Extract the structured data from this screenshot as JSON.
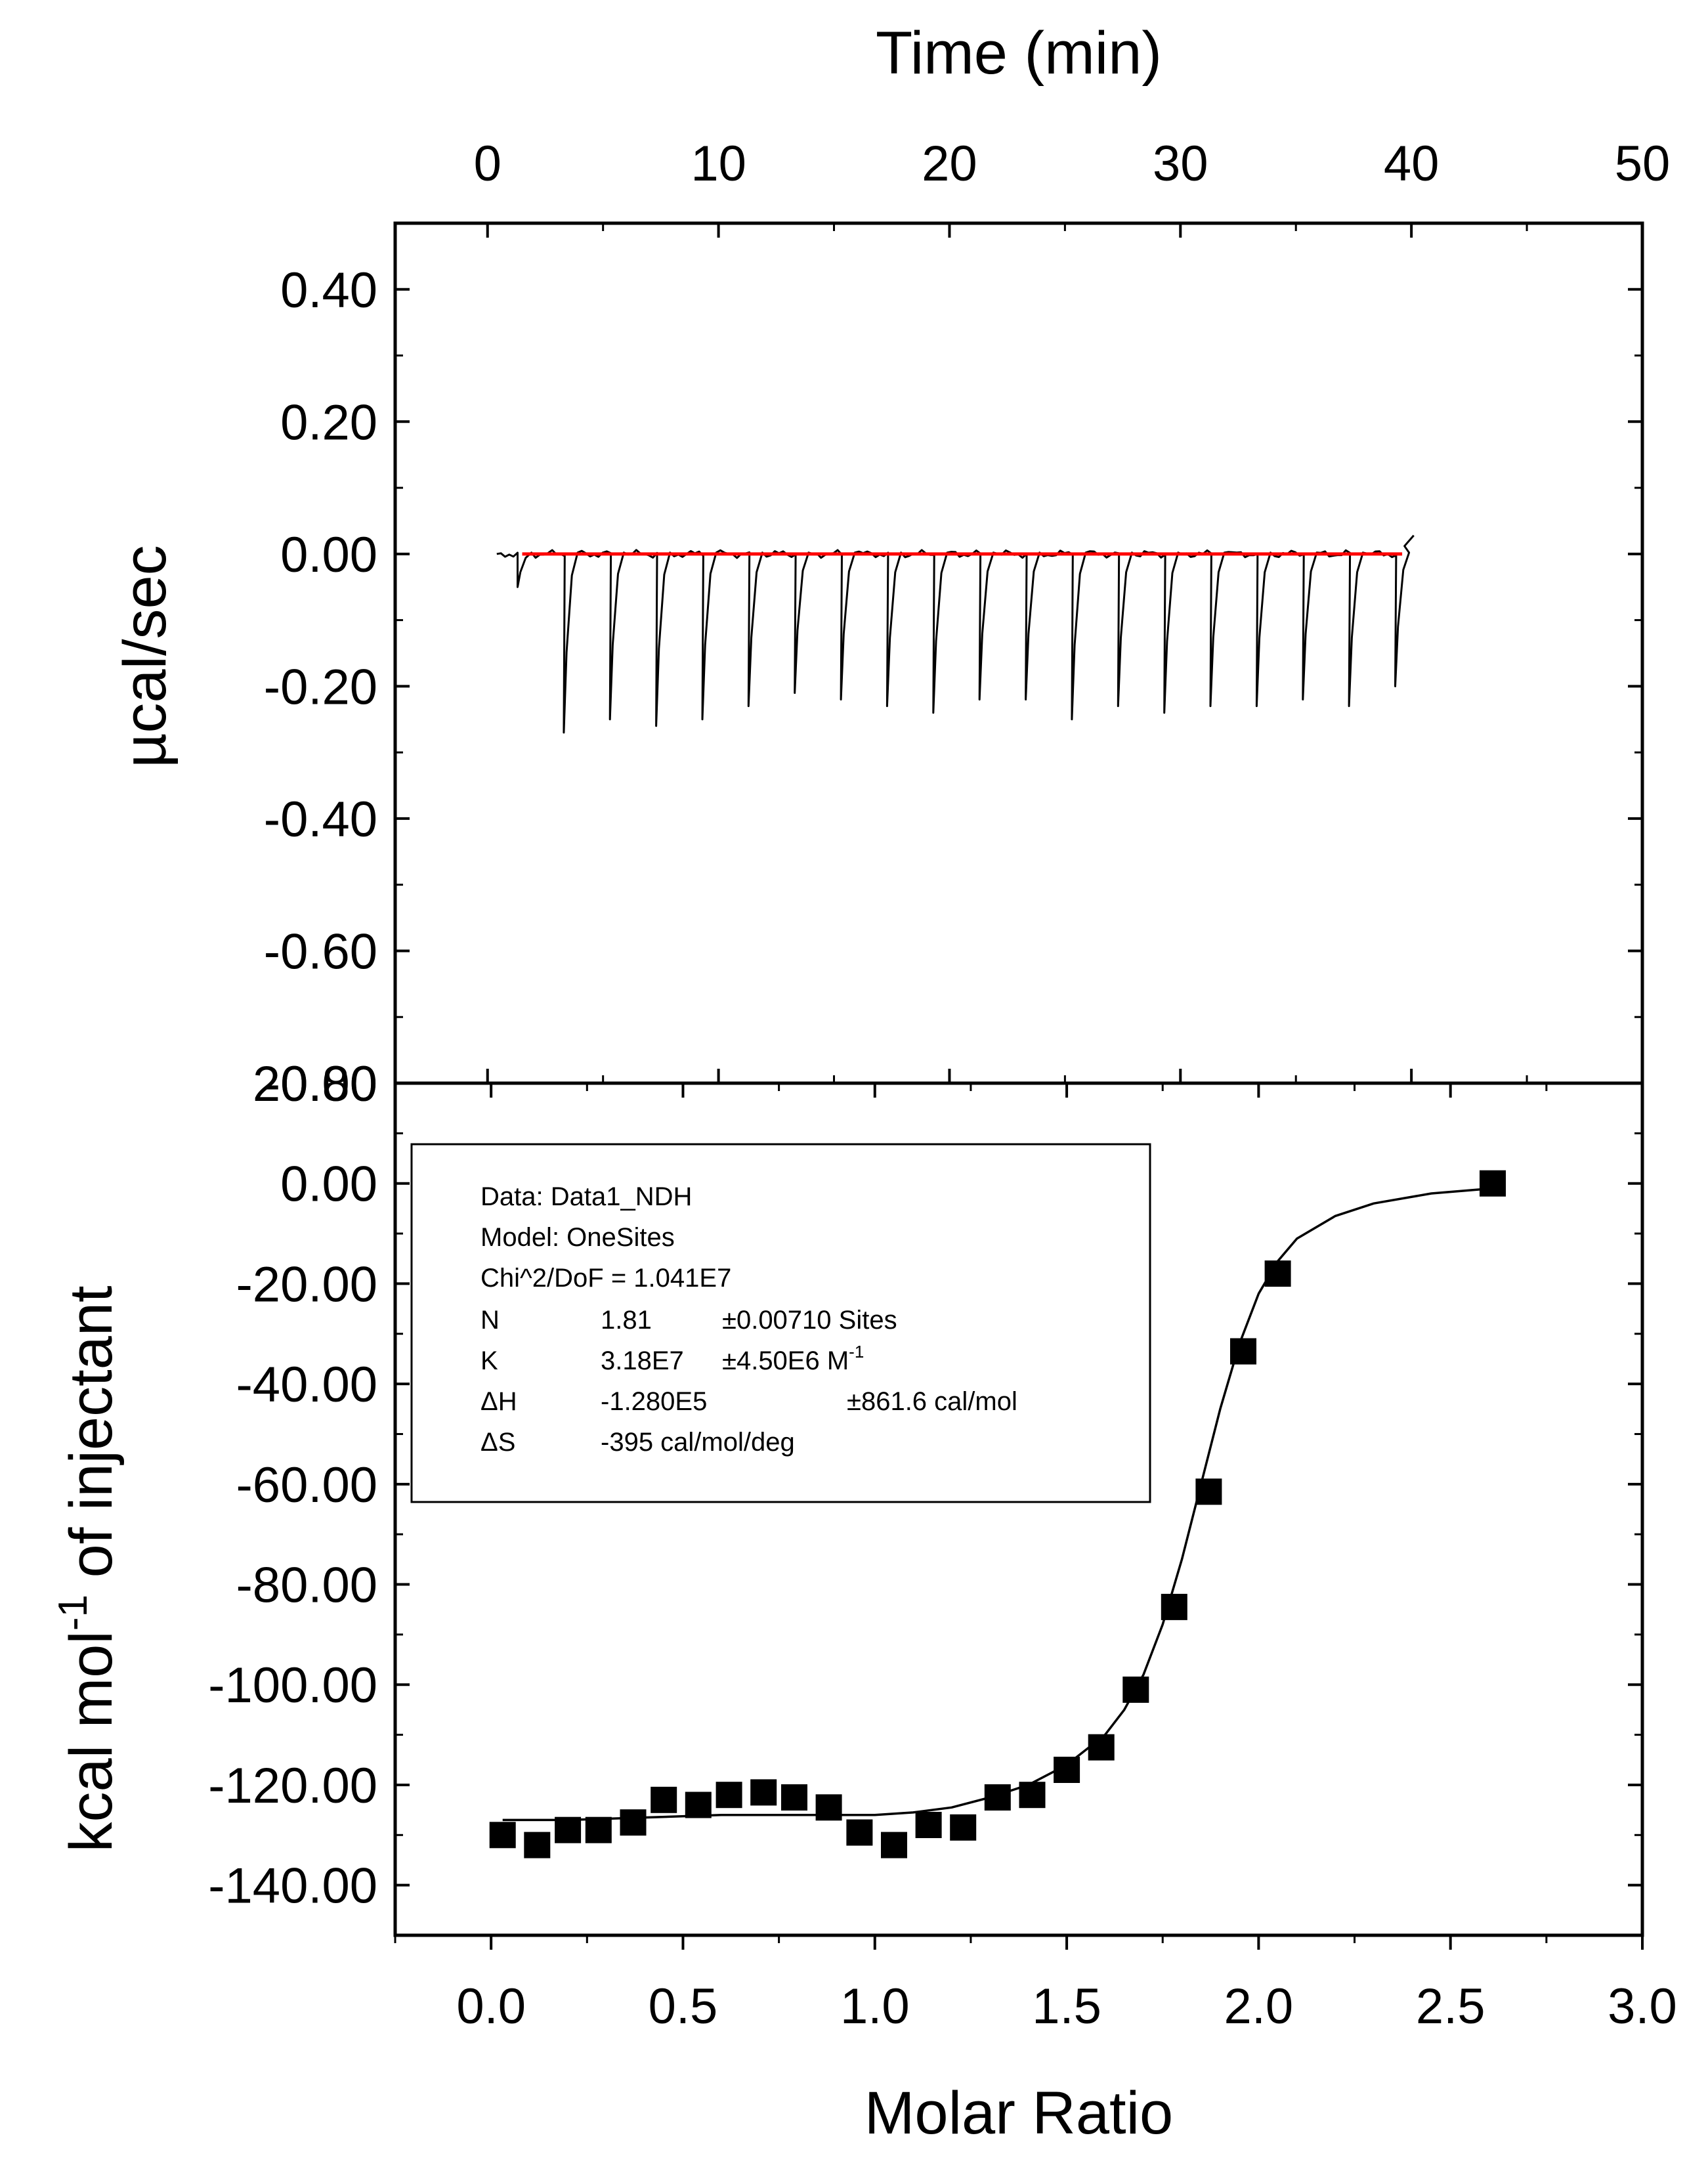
{
  "chart_data": [
    {
      "type": "line",
      "panel": "top",
      "xlabel": "Time (min)",
      "ylabel": "µcal/sec",
      "xlim": [
        -4,
        50
      ],
      "ylim": [
        -0.8,
        0.5
      ],
      "x_ticks": [
        "0",
        "10",
        "20",
        "30",
        "40",
        "50"
      ],
      "x_tick_values": [
        0,
        10,
        20,
        30,
        40,
        50
      ],
      "y_ticks": [
        "0.40",
        "0.20",
        "0.00",
        "-0.20",
        "-0.40",
        "-0.60",
        "-0.80"
      ],
      "y_tick_values": [
        0.4,
        0.2,
        0.0,
        -0.2,
        -0.4,
        -0.6,
        -0.8
      ],
      "baseline": {
        "color": "#ff0000",
        "value": 0.0,
        "x_range": [
          1.5,
          39.6
        ]
      },
      "trace_color": "#000000",
      "injection_times": [
        1.3,
        3.3,
        5.3,
        7.3,
        9.3,
        11.3,
        13.3,
        15.3,
        17.3,
        19.3,
        21.3,
        23.3,
        25.3,
        27.3,
        29.3,
        31.3,
        33.3,
        35.3,
        37.3,
        39.3
      ],
      "peak_minima": [
        -0.05,
        -0.27,
        -0.25,
        -0.26,
        -0.25,
        -0.23,
        -0.21,
        -0.22,
        -0.23,
        -0.24,
        -0.22,
        -0.22,
        -0.25,
        -0.23,
        -0.24,
        -0.23,
        -0.23,
        -0.22,
        -0.23,
        -0.2
      ]
    },
    {
      "type": "scatter",
      "panel": "bottom",
      "xlabel": "Molar Ratio",
      "ylabel_parts": [
        "kcal mol",
        "-1",
        " of injectant"
      ],
      "xlim": [
        -0.25,
        3.0
      ],
      "ylim": [
        -150,
        20
      ],
      "x_ticks": [
        "0.0",
        "0.5",
        "1.0",
        "1.5",
        "2.0",
        "2.5",
        "3.0"
      ],
      "x_tick_values": [
        0,
        0.5,
        1.0,
        1.5,
        2.0,
        2.5,
        3.0
      ],
      "y_ticks": [
        "20.00",
        "0.00",
        "-20.00",
        "-40.00",
        "-60.00",
        "-80.00",
        "-100.00",
        "-120.00",
        "-140.00"
      ],
      "y_tick_values": [
        20,
        0,
        -20,
        -40,
        -60,
        -80,
        -100,
        -120,
        -140
      ],
      "points": {
        "x": [
          0.03,
          0.12,
          0.2,
          0.28,
          0.37,
          0.45,
          0.54,
          0.62,
          0.71,
          0.79,
          0.88,
          0.96,
          1.05,
          1.14,
          1.23,
          1.32,
          1.41,
          1.5,
          1.59,
          1.68,
          1.78,
          1.87,
          1.96,
          2.05,
          2.61
        ],
        "y": [
          -130,
          -132,
          -129,
          -129,
          -127.5,
          -123,
          -124,
          -122,
          -121.5,
          -122.5,
          -124.5,
          -129.5,
          -132,
          -128,
          -128.5,
          -122.5,
          -122,
          -117,
          -112.5,
          -101,
          -84.5,
          -61.5,
          -33.5,
          -18,
          0
        ]
      },
      "fit": {
        "x": [
          0.03,
          0.2,
          0.4,
          0.6,
          0.8,
          1.0,
          1.1,
          1.2,
          1.3,
          1.4,
          1.5,
          1.6,
          1.65,
          1.7,
          1.75,
          1.8,
          1.85,
          1.9,
          1.95,
          2.0,
          2.05,
          2.1,
          2.2,
          2.3,
          2.45,
          2.61
        ],
        "y": [
          -127,
          -127,
          -126.5,
          -126,
          -126,
          -126,
          -125.5,
          -124.5,
          -122.5,
          -120,
          -116,
          -110,
          -105,
          -98,
          -88,
          -75,
          -60,
          -45,
          -32,
          -22,
          -15.5,
          -11,
          -6.5,
          -4,
          -2,
          -1
        ]
      },
      "legend": {
        "data": "Data: Data1_NDH",
        "model": "Model: OneSites",
        "chi": "Chi^2/DoF = 1.041E7",
        "rows": [
          {
            "param": "N",
            "value": "1.81",
            "error": "±0.00710 Sites",
            "unit_sup": ""
          },
          {
            "param": "K",
            "value": "3.18E7",
            "error": "±4.50E6 M",
            "unit_sup": "-1"
          },
          {
            "param": "ΔH",
            "value": "-1.280E5",
            "error": "±861.6 cal/mol",
            "unit_sup": ""
          },
          {
            "param": "ΔS",
            "value": "-395 cal/mol/deg",
            "error": "",
            "unit_sup": ""
          }
        ]
      }
    }
  ]
}
